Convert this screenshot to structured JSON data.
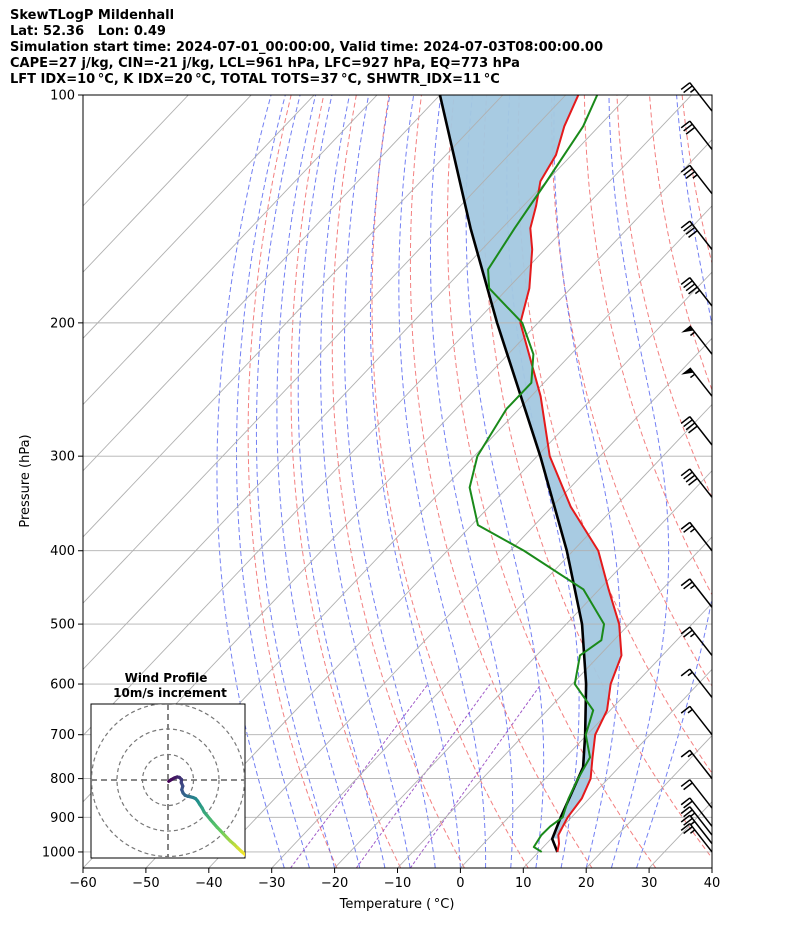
{
  "header": {
    "line1": "SkewTLogP Mildenhall",
    "line2": "Lat: 52.36   Lon: 0.49",
    "line3": "Simulation start time: 2024-07-01_00:00:00, Valid time: 2024-07-03T08:00:00.00",
    "line4": "CAPE=27 j/kg, CIN=-21 j/kg, LCL=961 hPa, LFC=927 hPa, EQ=773 hPa",
    "line5": "LFT IDX=10 °C, K IDX=20 °C, TOTAL TOTS=37 °C, SHWTR_IDX=11 °C"
  },
  "chart_data": {
    "type": "line",
    "subtype": "skew-t log-p",
    "xlabel": "Temperature ( °C)",
    "ylabel": "Pressure (hPa)",
    "xlim": [
      -60,
      40
    ],
    "ylim": [
      1050,
      100
    ],
    "y_scale": "log",
    "skew": 0.95,
    "grid": true,
    "x_ticks": [
      -60,
      -50,
      -40,
      -30,
      -20,
      -10,
      0,
      10,
      20,
      30,
      40
    ],
    "y_ticks": [
      100,
      200,
      300,
      400,
      500,
      600,
      700,
      800,
      900,
      1000
    ],
    "colors": {
      "temperature": "#e41a1c",
      "dewpoint": "#1a8a1a",
      "parcel": "#000000",
      "cape_fill": "#a3c8e0",
      "dry_adiabat": "#f06060",
      "moist_adiabat": "#5060f0",
      "mixing_ratio": "#9040c0",
      "isotherm": "#b0b0b0"
    },
    "series": [
      {
        "key": "temperature",
        "p": [
          1000,
          975,
          950,
          925,
          900,
          850,
          800,
          750,
          700,
          650,
          600,
          550,
          500,
          450,
          400,
          350,
          300,
          250,
          200,
          180,
          160,
          150,
          140,
          130,
          120,
          110,
          100
        ],
        "t": [
          13,
          12,
          10.6,
          10,
          9.4,
          8.8,
          7.2,
          4.3,
          1.3,
          -0.5,
          -3.9,
          -6.5,
          -11.6,
          -18.5,
          -26,
          -37,
          -48,
          -58.5,
          -72.8,
          -76.6,
          -82,
          -85.5,
          -88,
          -91,
          -92.5,
          -95.5,
          -98
        ]
      },
      {
        "key": "dewpoint",
        "p": [
          1000,
          985,
          950,
          925,
          900,
          850,
          800,
          750,
          700,
          650,
          600,
          550,
          525,
          500,
          450,
          400,
          370,
          330,
          300,
          260,
          240,
          220,
          200,
          180,
          170,
          150,
          130,
          110,
          100
        ],
        "t": [
          10.5,
          8.5,
          7.9,
          8,
          8.6,
          6.7,
          5.2,
          3.9,
          -0.2,
          -2.7,
          -9.6,
          -13.1,
          -12,
          -14,
          -22.5,
          -37.8,
          -49,
          -56,
          -59.5,
          -62,
          -62,
          -66,
          -72.5,
          -83,
          -86,
          -88,
          -90,
          -92.5,
          -95
        ]
      },
      {
        "key": "parcel",
        "p": [
          1000,
          961,
          900,
          800,
          773,
          700,
          600,
          500,
          400,
          300,
          200,
          150,
          100
        ],
        "t": [
          13,
          10.2,
          8.3,
          5.2,
          4.3,
          -0.3,
          -7.8,
          -17.5,
          -31,
          -49.5,
          -76.5,
          -95,
          -120
        ]
      }
    ],
    "dry_adiabats_k": [
      250,
      260,
      270,
      280,
      290,
      300,
      310,
      320,
      330,
      340,
      350,
      360,
      370,
      380,
      390,
      400,
      410,
      420,
      430
    ],
    "moist_adiabats_c": [
      -28,
      -24,
      -20,
      -16,
      -12,
      -8,
      -4,
      0,
      4,
      8,
      12,
      16,
      20,
      24,
      28
    ],
    "mixing_ratios_gkg": [
      0.4,
      1,
      2
    ],
    "wind_barbs": [
      {
        "p": 1000,
        "speed_kt": 25
      },
      {
        "p": 975,
        "speed_kt": 25
      },
      {
        "p": 950,
        "speed_kt": 25
      },
      {
        "p": 925,
        "speed_kt": 20
      },
      {
        "p": 875,
        "speed_kt": 20
      },
      {
        "p": 800,
        "speed_kt": 15
      },
      {
        "p": 700,
        "speed_kt": 15
      },
      {
        "p": 625,
        "speed_kt": 15
      },
      {
        "p": 550,
        "speed_kt": 25
      },
      {
        "p": 475,
        "speed_kt": 25
      },
      {
        "p": 400,
        "speed_kt": 25
      },
      {
        "p": 340,
        "speed_kt": 40
      },
      {
        "p": 290,
        "speed_kt": 40
      },
      {
        "p": 250,
        "speed_kt": 55
      },
      {
        "p": 220,
        "speed_kt": 55
      },
      {
        "p": 190,
        "speed_kt": 45
      },
      {
        "p": 160,
        "speed_kt": 40
      },
      {
        "p": 135,
        "speed_kt": 35
      },
      {
        "p": 118,
        "speed_kt": 30
      },
      {
        "p": 105,
        "speed_kt": 25
      }
    ],
    "inset": {
      "title": "Wind Profile",
      "subtitle": "10m/s increment",
      "type": "hodograph",
      "ring_step_ms": 10,
      "rings": 3,
      "colormap": [
        "#440154",
        "#3b528b",
        "#21918c",
        "#5ec962",
        "#fde725"
      ],
      "path_u": [
        0.3,
        1.2,
        2.5,
        3.6,
        4.5,
        5.3,
        5.2,
        5.8,
        5.4,
        5.9,
        6.7,
        7.8,
        8.8,
        9.9,
        10.8,
        11.6,
        12.4,
        13.4,
        14.2,
        15.4,
        16.6,
        17.9,
        19.3,
        20.5,
        21.8,
        23.2,
        24.5,
        26.0,
        27.3,
        28.8,
        30.2,
        31.5
      ],
      "path_v": [
        -0.5,
        0.1,
        0.8,
        1.2,
        1.0,
        0.2,
        -1.0,
        -2.4,
        -3.8,
        -5.1,
        -6.0,
        -6.4,
        -6.6,
        -6.9,
        -7.3,
        -8.2,
        -9.5,
        -11.0,
        -12.6,
        -14.0,
        -15.5,
        -17.0,
        -18.6,
        -19.8,
        -21.2,
        -22.7,
        -24.0,
        -25.3,
        -26.6,
        -28.0,
        -29.2,
        -30.6
      ]
    }
  }
}
